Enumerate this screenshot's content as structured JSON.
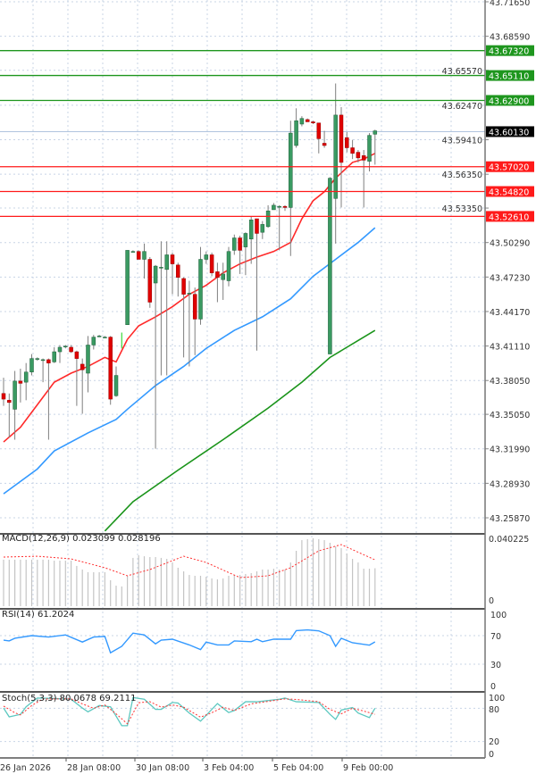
{
  "chart_data": [
    {
      "type": "candlestick",
      "panel": "price",
      "price_ticks": [
        43.7165,
        43.6859,
        43.6557,
        43.6247,
        43.5941,
        43.5635,
        43.5335,
        43.5029,
        43.4723,
        43.4417,
        43.4111,
        43.3805,
        43.3505,
        43.3199,
        43.2893,
        43.2587
      ],
      "ylim": [
        43.2465,
        43.7165
      ],
      "grid": true,
      "candles_ohlc": [
        [
          43.369,
          43.383,
          43.358,
          43.364
        ],
        [
          43.363,
          43.369,
          43.33,
          43.361
        ],
        [
          43.355,
          43.389,
          43.328,
          43.38
        ],
        [
          43.38,
          43.391,
          43.361,
          43.378
        ],
        [
          43.379,
          43.396,
          43.363,
          43.388
        ],
        [
          43.388,
          43.404,
          43.385,
          43.4
        ],
        [
          43.4,
          43.401,
          43.398,
          43.4
        ],
        [
          43.399,
          43.4,
          43.379,
          43.399
        ],
        [
          43.399,
          43.4,
          43.328,
          43.396
        ],
        [
          43.397,
          43.41,
          43.396,
          43.406
        ],
        [
          43.406,
          43.412,
          43.396,
          43.41
        ],
        [
          43.411,
          43.412,
          43.409,
          43.411
        ],
        [
          43.41,
          43.412,
          43.405,
          43.406
        ],
        [
          43.406,
          43.407,
          43.358,
          43.4
        ],
        [
          43.395,
          43.4,
          43.351,
          43.39
        ],
        [
          43.387,
          43.42,
          43.37,
          43.412
        ],
        [
          43.412,
          43.421,
          43.408,
          43.419
        ],
        [
          43.42,
          43.421,
          43.419,
          43.42
        ],
        [
          43.419,
          43.42,
          43.419,
          43.419
        ],
        [
          43.419,
          43.42,
          43.359,
          43.364
        ],
        [
          43.367,
          43.393,
          43.366,
          43.385
        ],
        [
          43.409,
          43.423,
          43.409,
          43.423
        ],
        [
          43.43,
          43.496,
          43.43,
          43.496
        ],
        [
          43.495,
          43.496,
          43.495,
          43.495
        ],
        [
          43.495,
          43.496,
          43.488,
          43.488
        ],
        [
          43.488,
          43.502,
          43.471,
          43.495
        ],
        [
          43.488,
          43.49,
          43.445,
          43.45
        ],
        [
          43.467,
          43.483,
          43.32,
          43.482
        ],
        [
          43.481,
          43.504,
          43.385,
          43.481
        ],
        [
          43.479,
          43.504,
          43.385,
          43.492
        ],
        [
          43.492,
          43.494,
          43.457,
          43.484
        ],
        [
          43.483,
          43.485,
          43.455,
          43.472
        ],
        [
          43.471,
          43.472,
          43.401,
          43.457
        ],
        [
          43.458,
          43.469,
          43.393,
          43.458
        ],
        [
          43.457,
          43.463,
          43.403,
          43.435
        ],
        [
          43.435,
          43.499,
          43.43,
          43.488
        ],
        [
          43.488,
          43.495,
          43.484,
          43.492
        ],
        [
          43.492,
          43.494,
          43.473,
          43.476
        ],
        [
          43.477,
          43.485,
          43.45,
          43.472
        ],
        [
          43.47,
          43.485,
          43.452,
          43.475
        ],
        [
          43.469,
          43.499,
          43.464,
          43.495
        ],
        [
          43.496,
          43.51,
          43.492,
          43.507
        ],
        [
          43.507,
          43.509,
          43.475,
          43.496
        ],
        [
          43.499,
          43.512,
          43.474,
          43.511
        ],
        [
          43.506,
          43.526,
          43.484,
          43.523
        ],
        [
          43.524,
          43.524,
          43.407,
          43.511
        ],
        [
          43.512,
          43.522,
          43.506,
          43.519
        ],
        [
          43.517,
          43.536,
          43.516,
          43.531
        ],
        [
          43.532,
          43.538,
          43.532,
          43.536
        ],
        [
          43.535,
          43.536,
          43.496,
          43.535
        ],
        [
          43.535,
          43.536,
          43.531,
          43.534
        ],
        [
          43.534,
          43.611,
          43.491,
          43.6
        ],
        [
          43.589,
          43.622,
          43.587,
          43.611
        ],
        [
          43.608,
          43.615,
          43.606,
          43.613
        ],
        [
          43.612,
          43.613,
          43.61,
          43.61
        ],
        [
          43.61,
          43.611,
          43.608,
          43.609
        ],
        [
          43.609,
          43.609,
          43.582,
          43.595
        ],
        [
          43.591,
          43.602,
          43.587,
          43.589
        ],
        [
          43.404,
          43.561,
          43.404,
          43.56
        ],
        [
          43.542,
          43.644,
          43.502,
          43.616
        ],
        [
          43.616,
          43.623,
          43.534,
          43.574
        ],
        [
          43.596,
          43.601,
          43.583,
          43.587
        ],
        [
          43.587,
          43.594,
          43.577,
          43.582
        ],
        [
          43.583,
          43.585,
          43.574,
          43.578
        ],
        [
          43.58,
          43.585,
          43.534,
          43.576
        ],
        [
          43.575,
          43.6,
          43.566,
          43.598
        ],
        [
          43.599,
          43.603,
          43.572,
          43.602
        ]
      ],
      "moving_averages": [
        {
          "color": "#ff2a2a",
          "points": [
            [
              0,
              43.326
            ],
            [
              3,
              43.339
            ],
            [
              6,
              43.359
            ],
            [
              9,
              43.379
            ],
            [
              12,
              43.387
            ],
            [
              15,
              43.393
            ],
            [
              18,
              43.401
            ],
            [
              20,
              43.397
            ],
            [
              22,
              43.417
            ],
            [
              24,
              43.429
            ],
            [
              27,
              43.437
            ],
            [
              30,
              43.446
            ],
            [
              33,
              43.457
            ],
            [
              36,
              43.465
            ],
            [
              39,
              43.476
            ],
            [
              42,
              43.484
            ],
            [
              45,
              43.49
            ],
            [
              48,
              43.495
            ],
            [
              51,
              43.503
            ],
            [
              53,
              43.524
            ],
            [
              55,
              43.54
            ],
            [
              57,
              43.548
            ],
            [
              59,
              43.56
            ],
            [
              62,
              43.574
            ],
            [
              64,
              43.577
            ],
            [
              66,
              43.582
            ]
          ]
        },
        {
          "color": "#3399ff",
          "points": [
            [
              0,
              43.28
            ],
            [
              6,
              43.302
            ],
            [
              9,
              43.318
            ],
            [
              15,
              43.334
            ],
            [
              20,
              43.346
            ],
            [
              22,
              43.355
            ],
            [
              27,
              43.376
            ],
            [
              32,
              43.393
            ],
            [
              36,
              43.409
            ],
            [
              41,
              43.425
            ],
            [
              46,
              43.437
            ],
            [
              51,
              43.453
            ],
            [
              55,
              43.473
            ],
            [
              59,
              43.488
            ],
            [
              63,
              43.503
            ],
            [
              66,
              43.516
            ]
          ]
        },
        {
          "color": "#1a941a",
          "points": [
            [
              18,
              43.247
            ],
            [
              23,
              43.273
            ],
            [
              31,
              43.301
            ],
            [
              39,
              43.328
            ],
            [
              47,
              43.356
            ],
            [
              53,
              43.379
            ],
            [
              58,
              43.401
            ],
            [
              66,
              43.425
            ]
          ]
        }
      ],
      "levels": [
        {
          "price": "43.67320",
          "color": "#1e961e"
        },
        {
          "price": "43.65110",
          "color": "#1e961e"
        },
        {
          "price": "43.62900",
          "color": "#1e961e"
        },
        {
          "price": "43.57020",
          "color": "#ff1a1a"
        },
        {
          "price": "43.54820",
          "color": "#ff1a1a"
        },
        {
          "price": "43.52610",
          "color": "#ff1a1a"
        }
      ],
      "current_price": "43.60130",
      "colors": {
        "bull": "#3a9a62",
        "bear": "#e00000",
        "wick": "#7f7f7f"
      }
    },
    {
      "type": "bar",
      "panel": "macd",
      "label": "MACD(12,26,9) 0.023099 0.028196",
      "axis_labels": [
        "0.040225",
        "0"
      ],
      "ylim": [
        0,
        0.040225
      ],
      "histogram": [
        0.0283,
        0.0283,
        0.0283,
        0.0283,
        0.0283,
        0.0283,
        0.0283,
        0.0283,
        0.0283,
        0.0277,
        0.0277,
        0.0277,
        0.0277,
        0.0245,
        0.0223,
        0.0207,
        0.0207,
        0.0207,
        0.0207,
        0.0158,
        0.0125,
        0.012,
        0.0185,
        0.0294,
        0.031,
        0.0304,
        0.0299,
        0.0299,
        0.0294,
        0.0288,
        0.0266,
        0.0234,
        0.0212,
        0.019,
        0.0185,
        0.0185,
        0.0179,
        0.0169,
        0.0163,
        0.0169,
        0.0185,
        0.019,
        0.019,
        0.0196,
        0.0201,
        0.0212,
        0.0223,
        0.0223,
        0.0228,
        0.0223,
        0.0223,
        0.0266,
        0.0337,
        0.0402,
        0.0408,
        0.0413,
        0.0408,
        0.0402,
        0.0386,
        0.0364,
        0.0353,
        0.0321,
        0.0288,
        0.0266,
        0.0228,
        0.0228,
        0.0231
      ],
      "signal": [
        [
          0,
          0.0299
        ],
        [
          6,
          0.0304
        ],
        [
          12,
          0.0288
        ],
        [
          18,
          0.0234
        ],
        [
          22,
          0.0185
        ],
        [
          26,
          0.0223
        ],
        [
          32,
          0.0304
        ],
        [
          36,
          0.0266
        ],
        [
          42,
          0.0174
        ],
        [
          47,
          0.0185
        ],
        [
          51,
          0.0234
        ],
        [
          56,
          0.0337
        ],
        [
          60,
          0.0375
        ],
        [
          66,
          0.0282
        ]
      ]
    },
    {
      "type": "line",
      "panel": "rsi",
      "label": "RSI(14) 61.2024",
      "axis_labels": [
        "100",
        "70",
        "30",
        "0"
      ],
      "levels": [
        70,
        30
      ],
      "ylim": [
        0,
        100
      ],
      "values": [
        [
          0,
          63.7
        ],
        [
          1,
          62.6
        ],
        [
          2,
          66.3
        ],
        [
          5,
          70
        ],
        [
          8,
          68
        ],
        [
          11,
          71
        ],
        [
          14,
          61
        ],
        [
          16,
          68
        ],
        [
          18,
          68.9
        ],
        [
          19,
          46
        ],
        [
          21,
          55
        ],
        [
          23,
          73.5
        ],
        [
          25,
          71
        ],
        [
          27,
          58.5
        ],
        [
          28,
          63.7
        ],
        [
          30,
          65
        ],
        [
          33,
          57
        ],
        [
          35,
          50.4
        ],
        [
          36,
          61
        ],
        [
          38,
          57
        ],
        [
          40,
          57
        ],
        [
          41,
          62.6
        ],
        [
          44,
          61.5
        ],
        [
          45,
          65
        ],
        [
          46,
          61.5
        ],
        [
          48,
          65
        ],
        [
          51,
          65
        ],
        [
          52,
          77
        ],
        [
          54,
          78
        ],
        [
          56,
          76.7
        ],
        [
          58,
          70
        ],
        [
          59,
          55
        ],
        [
          60,
          66.3
        ],
        [
          62,
          60
        ],
        [
          65,
          56.7
        ],
        [
          66,
          61.2
        ]
      ]
    },
    {
      "type": "line",
      "panel": "stochastic",
      "label": "Stoch(5,3,3) 80.0678 69.2111",
      "axis_labels": [
        "100",
        "80",
        "20",
        "0"
      ],
      "levels": [
        80,
        20
      ],
      "ylim": [
        0,
        100
      ],
      "k": [
        [
          0,
          80.5
        ],
        [
          1,
          64.5
        ],
        [
          3,
          69
        ],
        [
          4,
          82.7
        ],
        [
          6,
          98.6
        ],
        [
          9,
          97.7
        ],
        [
          12,
          96.4
        ],
        [
          14,
          80.5
        ],
        [
          15,
          73.6
        ],
        [
          17,
          85
        ],
        [
          19,
          82.7
        ],
        [
          21,
          48.6
        ],
        [
          22,
          48.6
        ],
        [
          23,
          99.5
        ],
        [
          25,
          96.4
        ],
        [
          27,
          78
        ],
        [
          28,
          78
        ],
        [
          30,
          90.5
        ],
        [
          31,
          89.5
        ],
        [
          33,
          71.4
        ],
        [
          35,
          56.8
        ],
        [
          38,
          88.6
        ],
        [
          40,
          72.3
        ],
        [
          41,
          76
        ],
        [
          43,
          91.8
        ],
        [
          45,
          91.8
        ],
        [
          49,
          96.4
        ],
        [
          50,
          98.6
        ],
        [
          52,
          91.8
        ],
        [
          56,
          90.5
        ],
        [
          58,
          69
        ],
        [
          59,
          60
        ],
        [
          60,
          76.8
        ],
        [
          62,
          81.4
        ],
        [
          63,
          71.4
        ],
        [
          65,
          63.2
        ],
        [
          66,
          80.1
        ]
      ],
      "d": [
        [
          0,
          84
        ],
        [
          2,
          72
        ],
        [
          3,
          68
        ],
        [
          5,
          85
        ],
        [
          7,
          97
        ],
        [
          12,
          97
        ],
        [
          14,
          88
        ],
        [
          16,
          80
        ],
        [
          18,
          86
        ],
        [
          20,
          70
        ],
        [
          22,
          52
        ],
        [
          24,
          90
        ],
        [
          26,
          92
        ],
        [
          28,
          82
        ],
        [
          30,
          86
        ],
        [
          32,
          82
        ],
        [
          35,
          64
        ],
        [
          37,
          72
        ],
        [
          39,
          82
        ],
        [
          41,
          76
        ],
        [
          44,
          88
        ],
        [
          48,
          94
        ],
        [
          50,
          97
        ],
        [
          52,
          96
        ],
        [
          56,
          92
        ],
        [
          58,
          78
        ],
        [
          60,
          70
        ],
        [
          62,
          80
        ],
        [
          64,
          75
        ],
        [
          66,
          69.2
        ]
      ]
    }
  ],
  "time_axis": [
    "26 Jan 2026",
    "28 Jan 08:00",
    "30 Jan 08:00",
    "3 Feb 04:00",
    "5 Feb 04:00",
    "9 Feb 00:00"
  ]
}
